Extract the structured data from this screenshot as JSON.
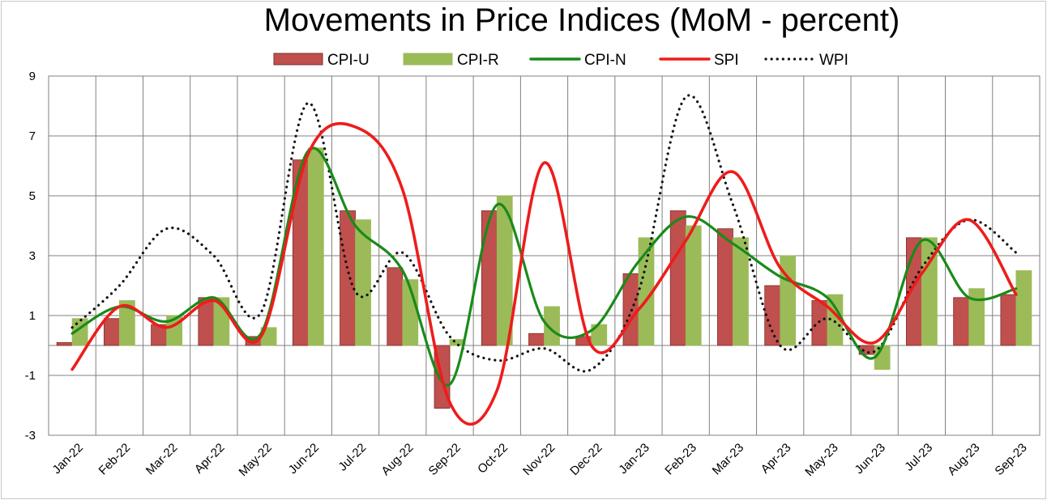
{
  "chart_data": {
    "type": "bar",
    "title": "Movements in Price Indices (MoM - percent)",
    "xlabel": "",
    "ylabel": "",
    "ylim": [
      -3,
      9
    ],
    "yticks": [
      -3,
      -1,
      1,
      3,
      5,
      7,
      9
    ],
    "grid": true,
    "legend_position": "top",
    "categories": [
      "Jan-22",
      "Feb-22",
      "Mar-22",
      "Apr-22",
      "May-22",
      "Jun-22",
      "Jul-22",
      "Aug-22",
      "Sep-22",
      "Oct-22",
      "Nov-22",
      "Dec-22",
      "Jan-23",
      "Feb-23",
      "Mar-23",
      "Apr-23",
      "May-23",
      "Jun-23",
      "Jul-23",
      "Aug-23",
      "Sep-23"
    ],
    "series": [
      {
        "name": "CPI-U",
        "kind": "bar",
        "color": "#c0504d",
        "values": [
          0.1,
          0.9,
          0.7,
          1.6,
          0.3,
          6.2,
          4.5,
          2.6,
          -2.1,
          4.5,
          0.4,
          0.3,
          2.4,
          4.5,
          3.9,
          2.0,
          1.5,
          -0.3,
          3.6,
          1.6,
          1.7
        ]
      },
      {
        "name": "CPI-R",
        "kind": "bar",
        "color": "#9bbb59",
        "values": [
          0.9,
          1.5,
          1.0,
          1.6,
          0.6,
          6.6,
          4.2,
          2.2,
          0.2,
          5.0,
          1.3,
          0.7,
          3.6,
          4.0,
          3.6,
          3.0,
          1.7,
          -0.8,
          3.6,
          1.9,
          2.5
        ]
      },
      {
        "name": "CPI-N",
        "kind": "line",
        "color": "#1a8a1a",
        "values": [
          0.4,
          1.3,
          0.8,
          1.6,
          0.4,
          6.5,
          4.0,
          2.5,
          -1.3,
          4.7,
          0.8,
          0.5,
          2.8,
          4.3,
          3.4,
          2.3,
          1.6,
          -0.4,
          3.5,
          1.6,
          1.9
        ]
      },
      {
        "name": "SPI",
        "kind": "line",
        "color": "#ee1c1c",
        "values": [
          -0.8,
          1.3,
          0.6,
          1.5,
          0.3,
          6.4,
          7.3,
          5.2,
          -1.9,
          -1.5,
          6.1,
          0.0,
          1.2,
          3.5,
          5.8,
          2.6,
          1.3,
          0.1,
          2.4,
          4.2,
          1.7
        ]
      },
      {
        "name": "WPI",
        "kind": "dotted",
        "color": "#111111",
        "values": [
          0.6,
          2.0,
          3.9,
          3.0,
          1.1,
          8.1,
          1.8,
          3.1,
          0.3,
          -0.5,
          -0.1,
          -0.8,
          1.8,
          8.3,
          4.7,
          0.0,
          0.9,
          -0.2,
          2.6,
          4.2,
          3.1
        ]
      }
    ]
  }
}
